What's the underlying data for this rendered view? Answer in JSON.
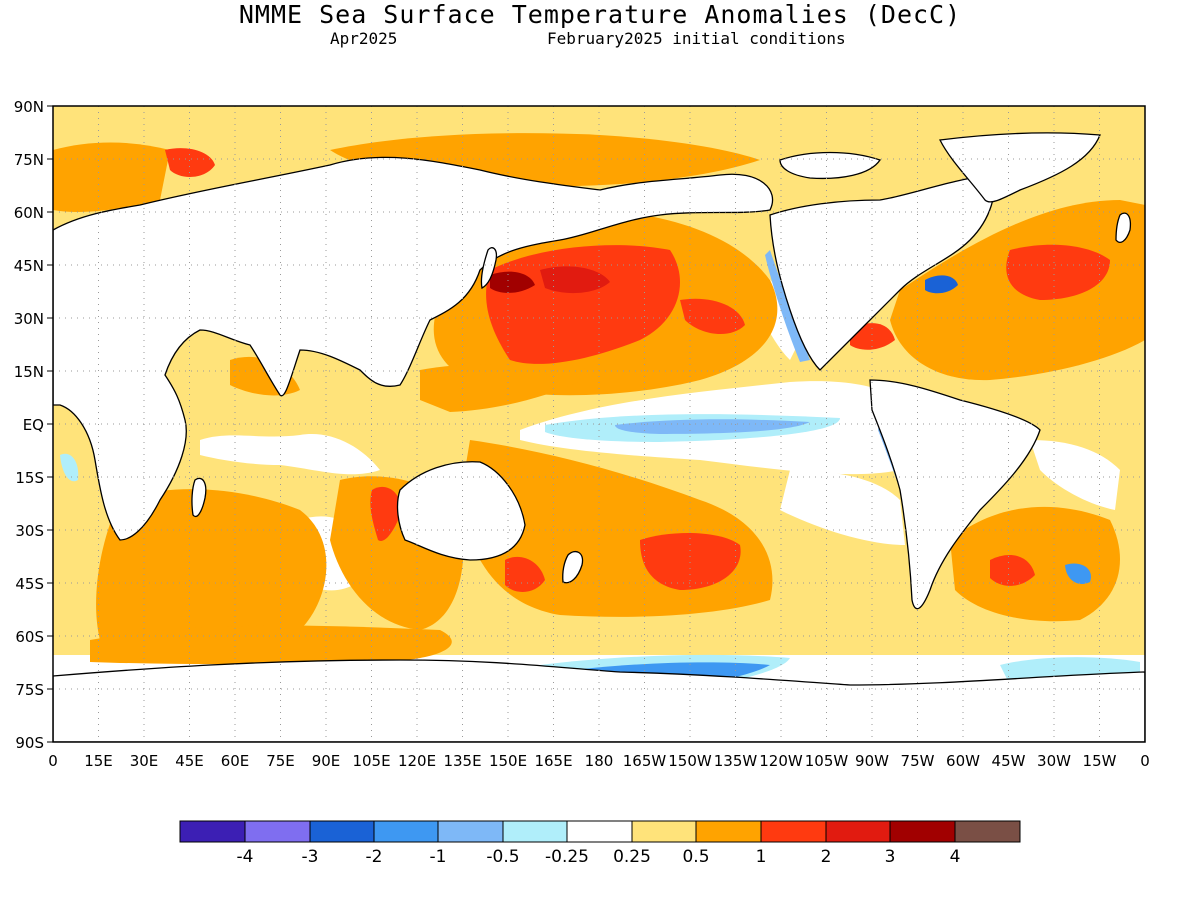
{
  "header": {
    "title": "NMME Sea Surface Temperature Anomalies (DecC)",
    "lead_month": "Apr2025",
    "init_text": "February2025 initial conditions"
  },
  "map": {
    "lat_labels": [
      "90N",
      "75N",
      "60N",
      "45N",
      "30N",
      "15N",
      "EQ",
      "15S",
      "30S",
      "45S",
      "60S",
      "75S",
      "90S"
    ],
    "lon_labels": [
      "0",
      "15E",
      "30E",
      "45E",
      "60E",
      "75E",
      "90E",
      "105E",
      "120E",
      "135E",
      "150E",
      "165E",
      "180",
      "165W",
      "150W",
      "135W",
      "120W",
      "105W",
      "90W",
      "75W",
      "60W",
      "45W",
      "30W",
      "15W",
      "0"
    ],
    "colors": {
      "land": "#ffffff",
      "coast": "#000000",
      "grid": "#9a9a9a"
    }
  },
  "colorbar": {
    "colors": [
      "#3c1fb4",
      "#7f6ef0",
      "#1a62d6",
      "#3e98f2",
      "#7eb8f7",
      "#b0eefa",
      "#ffffff",
      "#ffe37a",
      "#ffa300",
      "#ff3a10",
      "#e11b10",
      "#a10000",
      "#7a4f45"
    ],
    "labels": [
      "-4",
      "-3",
      "-2",
      "-1",
      "-0.5",
      "-0.25",
      "0.25",
      "0.5",
      "1",
      "2",
      "3",
      "4"
    ]
  }
}
